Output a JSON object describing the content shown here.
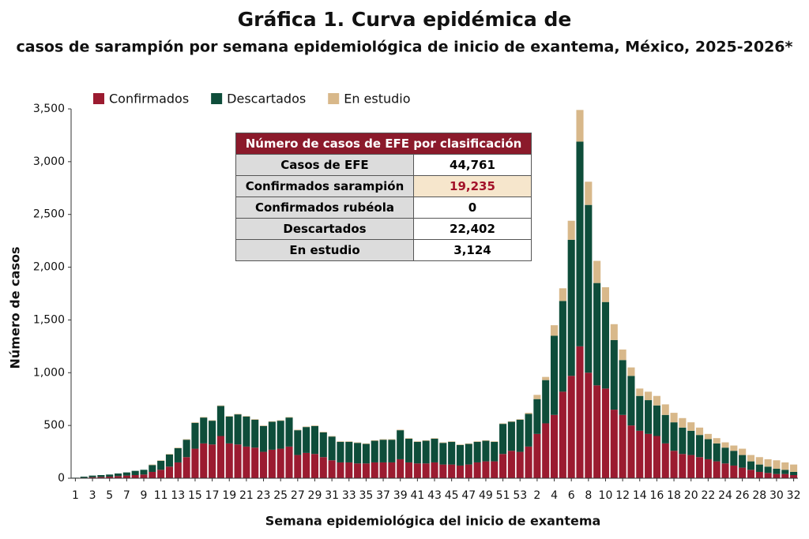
{
  "chart_data": {
    "type": "stacked_bar",
    "title": "Gráfica 1. Curva epidémica de",
    "subtitle": "casos de sarampión por semana epidemiológica de inicio de exantema, México, 2025-2026*",
    "x_label": "Semana epidemiológica del inicio de exantema",
    "y_label": "Número de casos",
    "legend": "top-left",
    "grid": false,
    "categories": [
      "1",
      null,
      "3",
      null,
      "5",
      null,
      "7",
      null,
      "9",
      null,
      "11",
      null,
      "13",
      null,
      "15",
      null,
      "17",
      null,
      "19",
      null,
      "21",
      null,
      "23",
      null,
      "25",
      null,
      "27",
      null,
      "29",
      null,
      "31",
      null,
      "33",
      null,
      "35",
      null,
      "37",
      null,
      "39",
      null,
      "41",
      null,
      "43",
      null,
      "45",
      null,
      "47",
      null,
      "49",
      null,
      "51",
      null,
      "53",
      null,
      "2",
      null,
      "4",
      null,
      "6",
      null,
      "8",
      null,
      "10",
      null,
      "12",
      null,
      "14",
      null,
      "16",
      null,
      "18",
      null,
      "20",
      null,
      "22",
      null,
      "24",
      null,
      "26",
      null,
      "28",
      null,
      "30",
      null,
      "32"
    ],
    "ylim": [
      0,
      3500
    ],
    "yticks": [
      0,
      500,
      {
        "value": 1000,
        "label": "1,000"
      },
      {
        "value": 1500,
        "label": "1,500"
      },
      {
        "value": 2000,
        "label": "2,000"
      },
      {
        "value": 2500,
        "label": "2,500"
      },
      {
        "value": 3000,
        "label": "3,000"
      },
      {
        "value": 3500,
        "label": "3,500"
      }
    ],
    "series": [
      {
        "name": "Confirmados",
        "color": "#9b1b30",
        "values": [
          2,
          5,
          10,
          12,
          15,
          20,
          25,
          30,
          35,
          60,
          80,
          110,
          150,
          200,
          280,
          330,
          320,
          400,
          330,
          320,
          300,
          290,
          250,
          270,
          280,
          300,
          220,
          240,
          230,
          200,
          170,
          150,
          150,
          140,
          140,
          150,
          150,
          150,
          180,
          150,
          140,
          140,
          150,
          130,
          130,
          120,
          130,
          150,
          160,
          160,
          230,
          260,
          250,
          300,
          420,
          520,
          600,
          820,
          970,
          1250,
          1000,
          880,
          850,
          650,
          600,
          500,
          450,
          420,
          400,
          330,
          260,
          230,
          220,
          200,
          180,
          160,
          140,
          120,
          100,
          80,
          60,
          50,
          40,
          40,
          30
        ]
      },
      {
        "name": "Descartados",
        "color": "#0e4d3a",
        "values": [
          3,
          10,
          15,
          18,
          20,
          25,
          30,
          40,
          45,
          65,
          85,
          115,
          135,
          165,
          245,
          245,
          225,
          285,
          255,
          285,
          285,
          265,
          245,
          265,
          265,
          275,
          235,
          245,
          265,
          235,
          225,
          195,
          195,
          195,
          185,
          205,
          215,
          215,
          275,
          225,
          205,
          215,
          225,
          205,
          215,
          195,
          195,
          195,
          195,
          185,
          285,
          275,
          305,
          310,
          330,
          410,
          750,
          860,
          1290,
          1940,
          1590,
          970,
          820,
          660,
          520,
          470,
          330,
          320,
          290,
          270,
          270,
          250,
          230,
          210,
          190,
          170,
          150,
          140,
          120,
          80,
          70,
          60,
          50,
          40,
          30
        ]
      },
      {
        "name": "En estudio",
        "color": "#d8b88a",
        "values": [
          0,
          0,
          0,
          0,
          0,
          0,
          0,
          0,
          0,
          5,
          5,
          5,
          5,
          5,
          5,
          5,
          5,
          5,
          5,
          5,
          5,
          5,
          5,
          5,
          5,
          5,
          5,
          5,
          5,
          5,
          5,
          5,
          5,
          5,
          5,
          5,
          5,
          5,
          5,
          5,
          5,
          5,
          5,
          5,
          5,
          5,
          5,
          5,
          5,
          5,
          5,
          5,
          5,
          10,
          40,
          30,
          100,
          120,
          180,
          300,
          220,
          210,
          140,
          150,
          100,
          80,
          70,
          80,
          90,
          100,
          90,
          90,
          80,
          70,
          50,
          50,
          50,
          50,
          60,
          60,
          70,
          70,
          80,
          70,
          70
        ]
      }
    ]
  },
  "table": {
    "title": "Número de casos de EFE por clasificación",
    "rows": [
      [
        "Casos de EFE",
        "44,761"
      ],
      [
        "Confirmados sarampión",
        "19,235"
      ],
      [
        "Confirmados rubéola",
        "0"
      ],
      [
        "Descartados",
        "22,402"
      ],
      [
        "En estudio",
        "3,124"
      ]
    ]
  }
}
